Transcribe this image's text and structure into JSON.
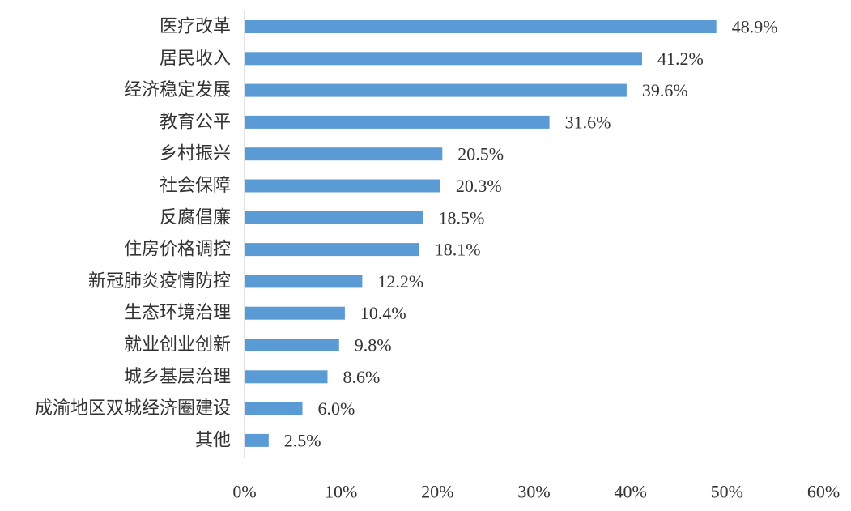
{
  "chart_data": {
    "type": "bar",
    "orientation": "horizontal",
    "categories": [
      "医疗改革",
      "居民收入",
      "经济稳定发展",
      "教育公平",
      "乡村振兴",
      "社会保障",
      "反腐倡廉",
      "住房价格调控",
      "新冠肺炎疫情防控",
      "生态环境治理",
      "就业创业创新",
      "城乡基层治理",
      "成渝地区双城经济圈建设",
      "其他"
    ],
    "values": [
      48.9,
      41.2,
      39.6,
      31.6,
      20.5,
      20.3,
      18.5,
      18.1,
      12.2,
      10.4,
      9.8,
      8.6,
      6.0,
      2.5
    ],
    "value_labels": [
      "48.9%",
      "41.2%",
      "39.6%",
      "31.6%",
      "20.5%",
      "20.3%",
      "18.5%",
      "18.1%",
      "12.2%",
      "10.4%",
      "9.8%",
      "8.6%",
      "6.0%",
      "2.5%"
    ],
    "xlim": [
      0,
      60
    ],
    "xticks": [
      0,
      10,
      20,
      30,
      40,
      50,
      60
    ],
    "xtick_labels": [
      "0%",
      "10%",
      "20%",
      "30%",
      "40%",
      "50%",
      "60%"
    ],
    "title": "",
    "xlabel": "",
    "ylabel": "",
    "grid": false,
    "legend": false,
    "bar_color": "#5B9BD5",
    "axis_color": "#D9D9D9",
    "text_color": "#333333"
  }
}
